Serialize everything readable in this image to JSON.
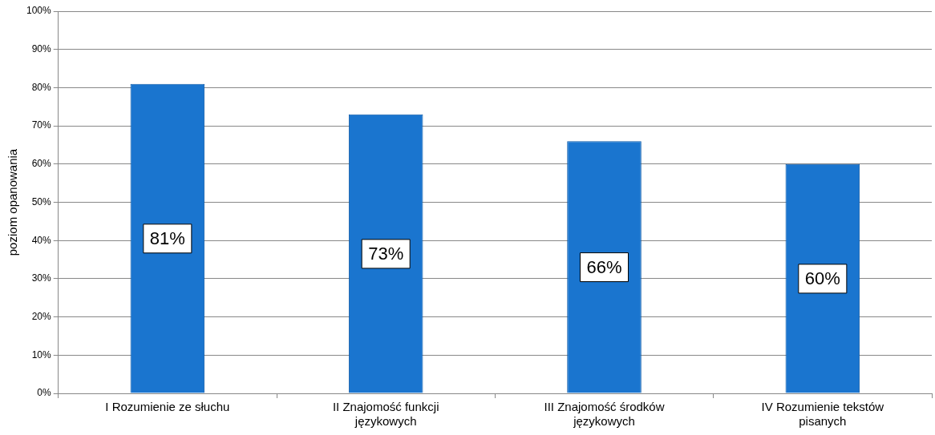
{
  "chart_data": {
    "type": "bar",
    "ylabel": "poziom opanowania",
    "categories": [
      "I Rozumienie ze słuchu",
      "II Znajomość funkcji językowych",
      "III Znajomość środków językowych",
      "IV Rozumienie tekstów pisanych"
    ],
    "values": [
      81,
      73,
      66,
      60
    ],
    "color": "#1a75cf",
    "value_labels": [
      "81%",
      "73%",
      "66%",
      "60%"
    ],
    "ylim": [
      0,
      100
    ],
    "yticks": [
      {
        "value": 0,
        "label": "0%"
      },
      {
        "value": 10,
        "label": "10%"
      },
      {
        "value": 20,
        "label": "20%"
      },
      {
        "value": 30,
        "label": "30%"
      },
      {
        "value": 40,
        "label": "40%"
      },
      {
        "value": 50,
        "label": "50%"
      },
      {
        "value": 60,
        "label": "60%"
      },
      {
        "value": 70,
        "label": "70%"
      },
      {
        "value": 80,
        "label": "80%"
      },
      {
        "value": 90,
        "label": "90%"
      },
      {
        "value": 100,
        "label": "100%"
      }
    ],
    "grid": "y",
    "legend": false
  }
}
